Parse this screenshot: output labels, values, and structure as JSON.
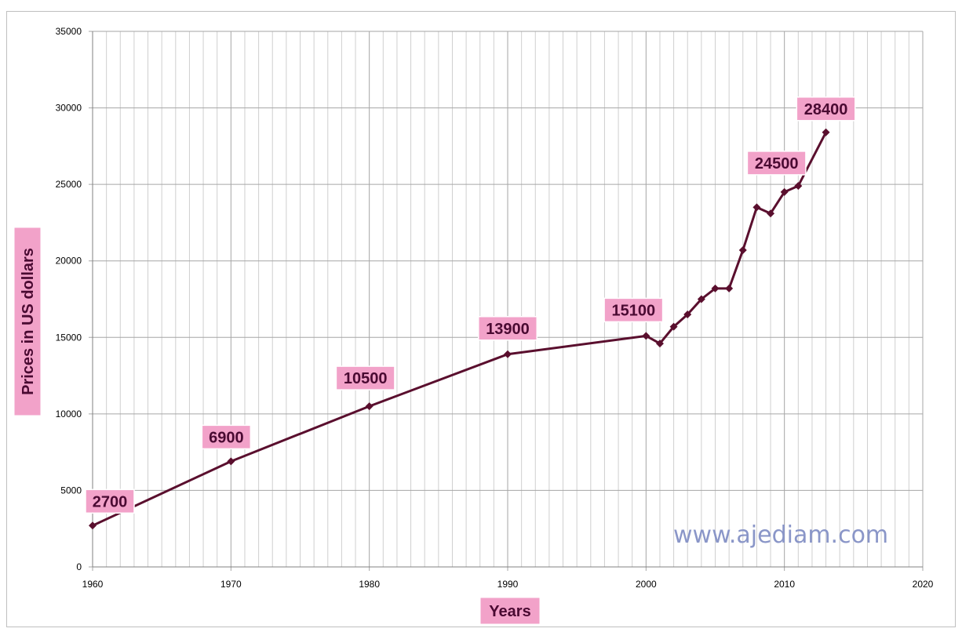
{
  "chart_data": {
    "type": "line",
    "title": "",
    "xlabel": "Years",
    "ylabel": "Prices in US dollars",
    "xlim": [
      1960,
      2020
    ],
    "ylim": [
      0,
      35000
    ],
    "x_ticks": [
      1960,
      1970,
      1980,
      1990,
      2000,
      2010,
      2020
    ],
    "y_ticks": [
      0,
      5000,
      10000,
      15000,
      20000,
      25000,
      30000,
      35000
    ],
    "grid": true,
    "legend": "none",
    "series": [
      {
        "color": "#5a0f2e",
        "marker": "diamond",
        "points": [
          {
            "x": 1960,
            "y": 2700
          },
          {
            "x": 1970,
            "y": 6900
          },
          {
            "x": 1980,
            "y": 10500
          },
          {
            "x": 1990,
            "y": 13900
          },
          {
            "x": 2000,
            "y": 15100
          },
          {
            "x": 2001,
            "y": 14600
          },
          {
            "x": 2002,
            "y": 15700
          },
          {
            "x": 2003,
            "y": 16500
          },
          {
            "x": 2004,
            "y": 17500
          },
          {
            "x": 2005,
            "y": 18200
          },
          {
            "x": 2006,
            "y": 18200
          },
          {
            "x": 2007,
            "y": 20700
          },
          {
            "x": 2008,
            "y": 23500
          },
          {
            "x": 2009,
            "y": 23100
          },
          {
            "x": 2010,
            "y": 24500
          },
          {
            "x": 2011,
            "y": 24900
          },
          {
            "x": 2013,
            "y": 28400
          }
        ]
      }
    ],
    "data_labels": [
      {
        "text": "2700",
        "x": 1960,
        "y": 2700
      },
      {
        "text": "6900",
        "x": 1970,
        "y": 6900
      },
      {
        "text": "10500",
        "x": 1980,
        "y": 10500
      },
      {
        "text": "13900",
        "x": 1990,
        "y": 13900
      },
      {
        "text": "15100",
        "x": 2000,
        "y": 15100
      },
      {
        "text": "24500",
        "x": 2010,
        "y": 24500
      },
      {
        "text": "28400",
        "x": 2013,
        "y": 28400
      }
    ],
    "annotations": [
      {
        "text": "www.ajediam.com"
      }
    ]
  },
  "colors": {
    "line": "#5a0f2e",
    "callout_fill": "#f2a2c9",
    "callout_text": "#4a0a32",
    "grid": "#a6a6a6"
  }
}
